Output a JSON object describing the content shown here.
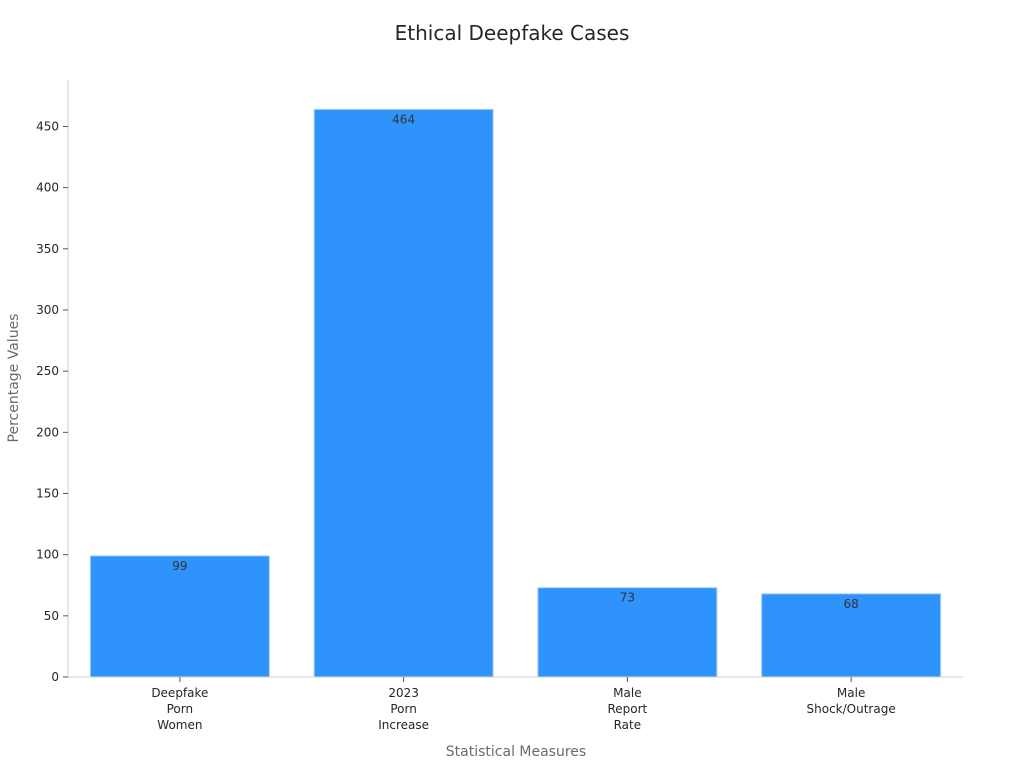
{
  "chart_data": {
    "type": "bar",
    "title": "Ethical Deepfake Cases",
    "xlabel": "Statistical Measures",
    "ylabel": "Percentage Values",
    "categories": [
      [
        "Deepfake",
        "Porn",
        "Women"
      ],
      [
        "2023",
        "Porn",
        "Increase"
      ],
      [
        "Male",
        "Report",
        "Rate"
      ],
      [
        "Male",
        "Shock/Outrage"
      ]
    ],
    "values": [
      99,
      464,
      73,
      68
    ],
    "data_labels": [
      "99",
      "464",
      "73",
      "68"
    ],
    "yticks": [
      0,
      50,
      100,
      150,
      200,
      250,
      300,
      350,
      400,
      450
    ],
    "ylim": [
      0,
      488
    ],
    "bar_color": "#2e93fa",
    "grid": false,
    "legend": "none"
  }
}
